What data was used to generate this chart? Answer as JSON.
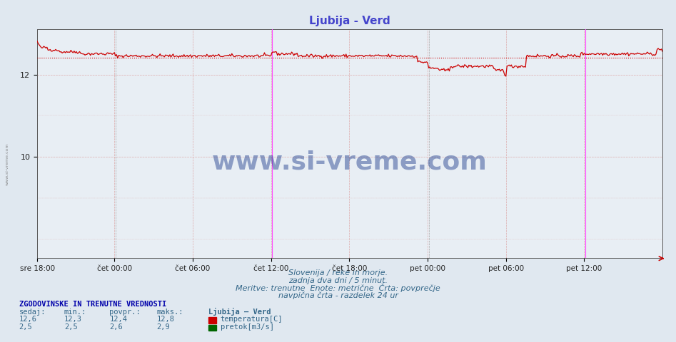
{
  "title": "Ljubija - Verd",
  "title_color": "#4444cc",
  "bg_color": "#e8eef4",
  "plot_bg_color": "#e8eef4",
  "fig_bg_color": "#e0e8f0",
  "x_labels": [
    "sre 18:00",
    "čet 00:00",
    "čet 06:00",
    "čet 12:00",
    "čet 18:00",
    "pet 00:00",
    "pet 06:00",
    "pet 12:00"
  ],
  "x_ticks_frac": [
    0.0,
    0.125,
    0.25,
    0.375,
    0.5,
    0.625,
    0.75,
    0.875
  ],
  "total_points": 576,
  "ylim_min": 7.55,
  "ylim_max": 13.1,
  "yticks": [
    10,
    12
  ],
  "temp_avg": 12.4,
  "flow_avg": 2.6,
  "temp_color": "#cc0000",
  "flow_color": "#006600",
  "avg_temp_color": "#cc0000",
  "avg_flow_color": "#0000bb",
  "grid_color": "#ddaaaa",
  "vline_magenta": "#ff44ff",
  "vline_gray": "#aaaaaa",
  "temp_min": 12.3,
  "temp_max": 12.8,
  "temp_current": 12.6,
  "temp_povpr": 12.4,
  "flow_min": 2.5,
  "flow_max": 2.9,
  "flow_current": 2.5,
  "flow_povpr": 2.6,
  "subtitle1": "Slovenija / reke in morje.",
  "subtitle2": "zadnja dva dni / 5 minut.",
  "subtitle3": "Meritve: trenutne  Enote: metrične  Črta: povprečje",
  "subtitle4": "navpična črta - razdelek 24 ur",
  "watermark": "www.si-vreme.com",
  "legend_title": "Ljubija – Verd",
  "legend_temp": "temperatura[C]",
  "legend_flow": "pretok[m3/s]",
  "table_header": "ZGODOVINSKE IN TRENUTNE VREDNOSTI",
  "col_sedaj": "sedaj:",
  "col_min": "min.:",
  "col_povpr": "povpr.:",
  "col_maks": "maks.:"
}
